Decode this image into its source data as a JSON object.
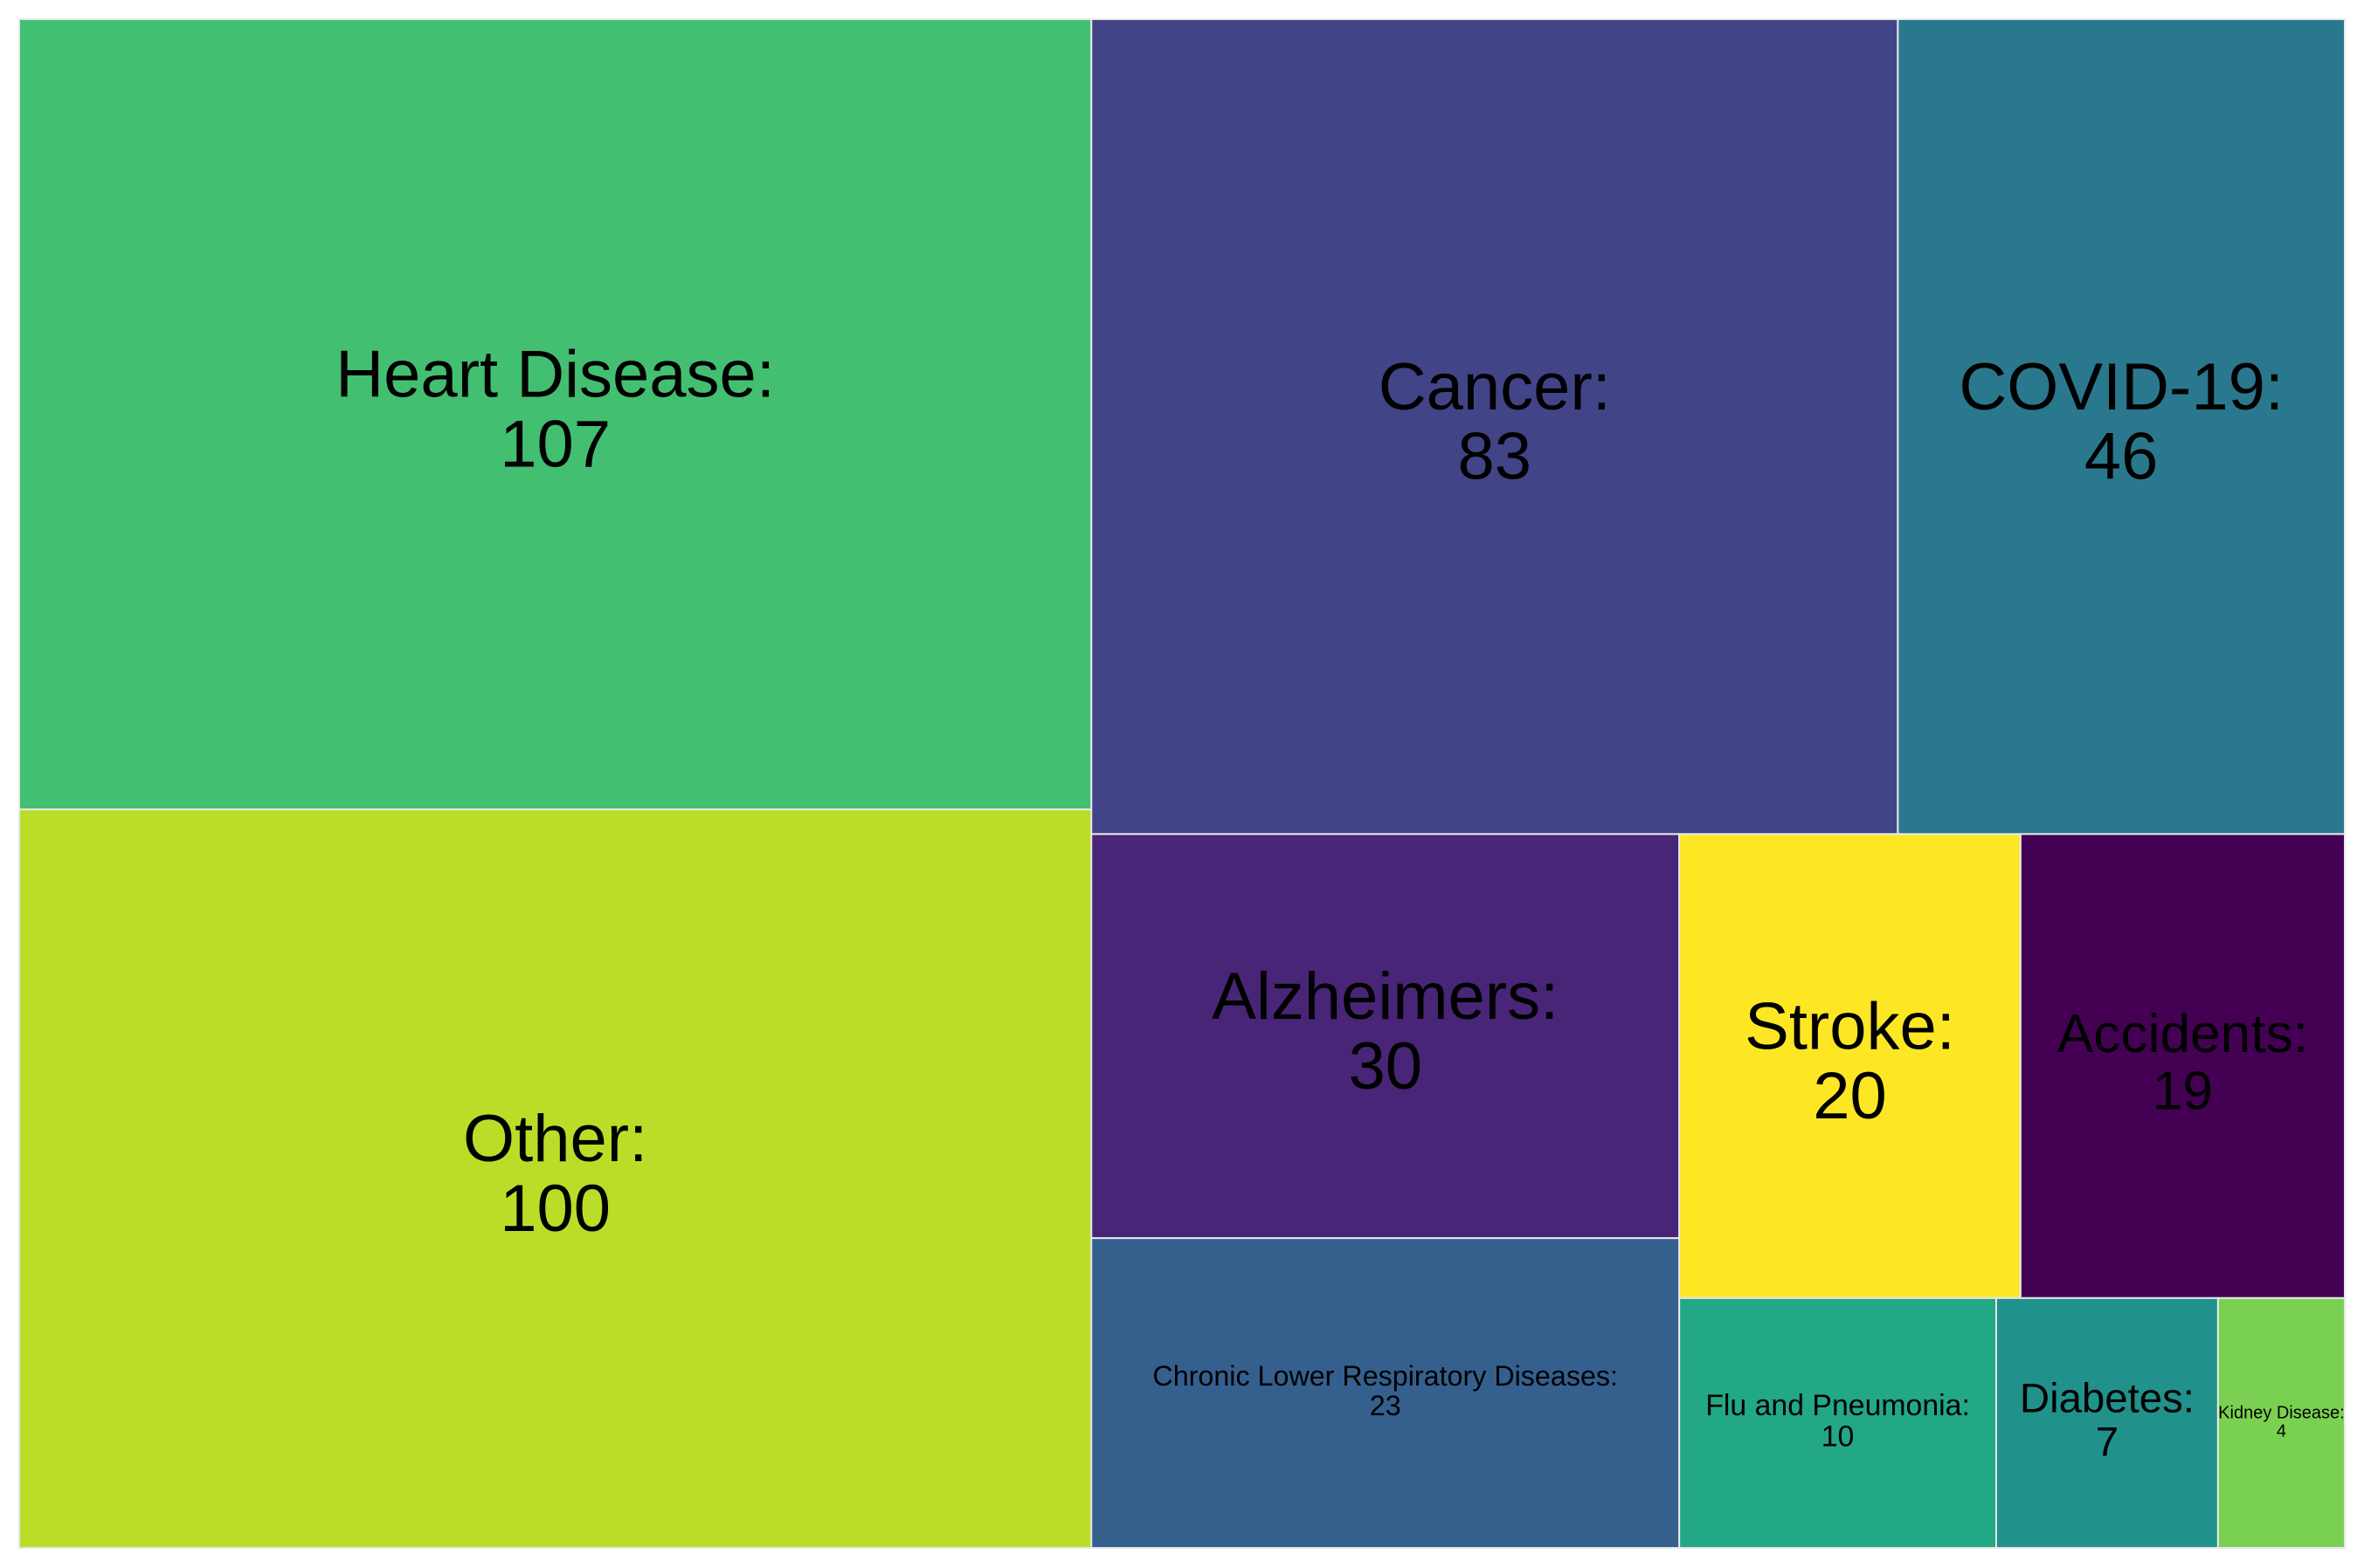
{
  "chart_data": {
    "type": "treemap",
    "title": "",
    "items": [
      {
        "label": "Heart Disease",
        "value": 107,
        "color": "#43bf71"
      },
      {
        "label": "Other",
        "value": 100,
        "color": "#bade28"
      },
      {
        "label": "Cancer",
        "value": 83,
        "color": "#414487"
      },
      {
        "label": "COVID-19",
        "value": 46,
        "color": "#2a788e"
      },
      {
        "label": "Alzheimers",
        "value": 30,
        "color": "#482576"
      },
      {
        "label": "Chronic Lower Respiratory Diseases",
        "value": 23,
        "color": "#355f8d"
      },
      {
        "label": "Stroke",
        "value": 20,
        "color": "#fde725"
      },
      {
        "label": "Accidents",
        "value": 19,
        "color": "#440154"
      },
      {
        "label": "Flu and Pneumonia",
        "value": 10,
        "color": "#22a884"
      },
      {
        "label": "Diabetes",
        "value": 7,
        "color": "#21918c"
      },
      {
        "label": "Kidney Disease",
        "value": 4,
        "color": "#7ad151"
      }
    ]
  }
}
